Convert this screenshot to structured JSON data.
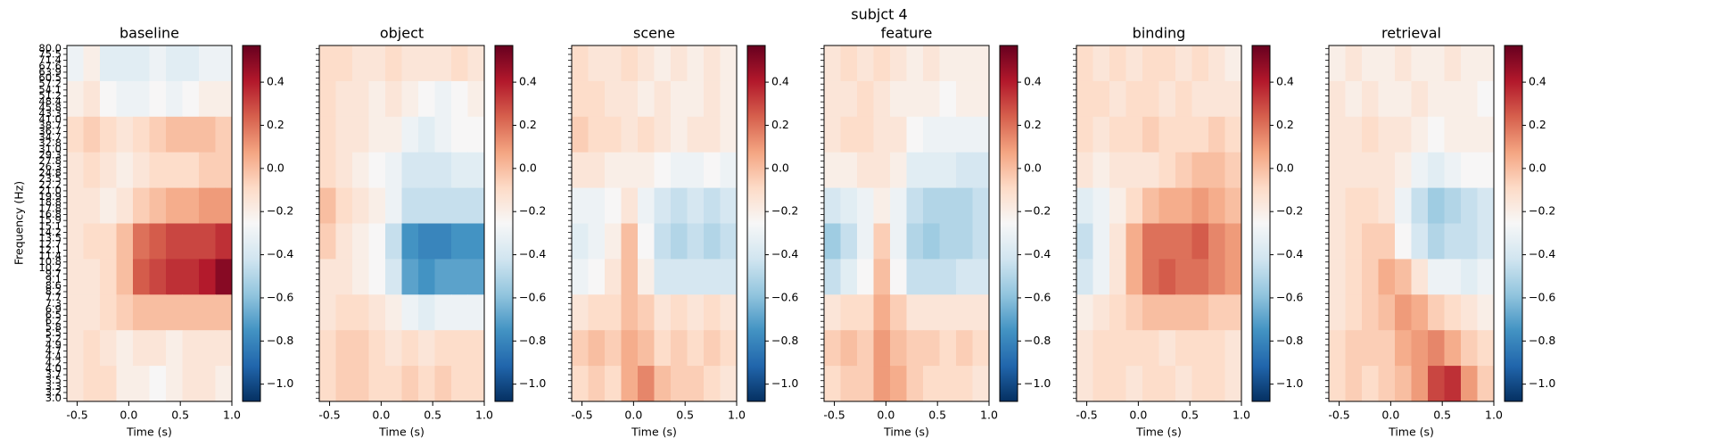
{
  "chart_data": {
    "type": "heatmap",
    "title": "subjct 4",
    "xlabel": "Time (s)",
    "ylabel": "Frequency (Hz)",
    "xlim": [
      -0.6,
      1.0
    ],
    "xticks": [
      -0.5,
      {
        "value": 0,
        "label": "0.0"
      },
      0.5,
      {
        "value": 1,
        "label": "1.0"
      }
    ],
    "frequencies": [
      "3.0",
      "3.2",
      "3.3",
      "3.5",
      "3.7",
      "4.0",
      "4.2",
      "4.4",
      "4.7",
      "4.9",
      "5.2",
      "5.5",
      "5.8",
      "6.2",
      "6.5",
      "6.9",
      "7.3",
      "7.7",
      "8.2",
      "8.6",
      "9.1",
      "9.7",
      "10.2",
      "10.8",
      "11.4",
      "12.1",
      "12.7",
      "13.5",
      "14.2",
      "15.1",
      "15.9",
      "16.8",
      "17.8",
      "18.8",
      "19.9",
      "21.0",
      "22.2",
      "23.5",
      "24.8",
      "26.3",
      "27.8",
      "29.3",
      "31.0",
      "32.8",
      "34.7",
      "36.7",
      "38.7",
      "41.0",
      "43.3",
      "45.8",
      "48.4",
      "51.2",
      "54.1",
      "57.2",
      "60.5",
      "63.9",
      "67.6",
      "71.4",
      "75.5",
      "80.0"
    ],
    "clim": [
      -1.08,
      0.57
    ],
    "cticks": [
      {
        "value": -1,
        "label": "−1.0"
      },
      {
        "value": -0.8,
        "label": "−0.8"
      },
      {
        "value": -0.6,
        "label": "−0.6"
      },
      {
        "value": -0.4,
        "label": "−0.4"
      },
      {
        "value": -0.2,
        "label": "−0.2"
      },
      {
        "value": 0,
        "label": "0.0"
      },
      0.2,
      0.4
    ],
    "colormap": [
      "#053061",
      "#2166ac",
      "#4393c3",
      "#92c5de",
      "#d1e5f0",
      "#f7f7f7",
      "#fddbc7",
      "#f4a582",
      "#d6604d",
      "#b2182b",
      "#67001f"
    ],
    "panels": [
      {
        "title": "baseline",
        "values": [
          [
            -0.3,
            -0.2,
            -0.35,
            -0.35,
            -0.35,
            -0.3,
            -0.35,
            -0.35,
            -0.3,
            -0.3
          ],
          [
            -0.2,
            -0.15,
            -0.25,
            -0.3,
            -0.3,
            -0.25,
            -0.3,
            -0.25,
            -0.2,
            -0.2
          ],
          [
            -0.1,
            -0.05,
            -0.1,
            -0.15,
            -0.1,
            -0.05,
            0.0,
            0.0,
            0.0,
            -0.05
          ],
          [
            -0.15,
            -0.1,
            -0.15,
            -0.2,
            -0.15,
            -0.1,
            -0.1,
            -0.1,
            -0.05,
            -0.05
          ],
          [
            -0.15,
            -0.15,
            -0.2,
            -0.15,
            -0.05,
            0.0,
            0.05,
            0.05,
            0.1,
            0.1
          ],
          [
            -0.15,
            -0.1,
            -0.1,
            0.0,
            0.2,
            0.25,
            0.3,
            0.3,
            0.3,
            0.35
          ],
          [
            -0.15,
            -0.15,
            -0.1,
            0.0,
            0.25,
            0.3,
            0.35,
            0.35,
            0.4,
            0.5
          ],
          [
            -0.15,
            -0.15,
            -0.1,
            -0.05,
            0.0,
            0.0,
            0.0,
            0.0,
            0.0,
            0.0
          ],
          [
            -0.15,
            -0.1,
            -0.15,
            -0.2,
            -0.15,
            -0.15,
            -0.2,
            -0.15,
            -0.15,
            -0.15
          ],
          [
            -0.15,
            -0.1,
            -0.1,
            -0.2,
            -0.2,
            -0.25,
            -0.2,
            -0.15,
            -0.15,
            -0.2
          ]
        ]
      },
      {
        "title": "object",
        "values": [
          [
            -0.1,
            -0.1,
            -0.15,
            -0.15,
            -0.1,
            -0.15,
            -0.15,
            -0.15,
            -0.1,
            -0.15
          ],
          [
            -0.1,
            -0.15,
            -0.15,
            -0.2,
            -0.15,
            -0.2,
            -0.25,
            -0.3,
            -0.25,
            -0.2
          ],
          [
            -0.1,
            -0.15,
            -0.15,
            -0.2,
            -0.2,
            -0.3,
            -0.35,
            -0.3,
            -0.25,
            -0.25
          ],
          [
            -0.1,
            -0.15,
            -0.2,
            -0.25,
            -0.3,
            -0.4,
            -0.4,
            -0.4,
            -0.35,
            -0.35
          ],
          [
            0.0,
            -0.1,
            -0.15,
            -0.2,
            -0.3,
            -0.45,
            -0.45,
            -0.45,
            -0.45,
            -0.45
          ],
          [
            -0.05,
            -0.15,
            -0.2,
            -0.25,
            -0.45,
            -0.75,
            -0.8,
            -0.8,
            -0.75,
            -0.75
          ],
          [
            -0.15,
            -0.15,
            -0.2,
            -0.25,
            -0.4,
            -0.7,
            -0.75,
            -0.7,
            -0.7,
            -0.7
          ],
          [
            -0.15,
            -0.1,
            -0.1,
            -0.15,
            -0.2,
            -0.3,
            -0.35,
            -0.3,
            -0.3,
            -0.3
          ],
          [
            -0.1,
            -0.05,
            -0.05,
            -0.1,
            -0.15,
            -0.1,
            -0.15,
            -0.1,
            -0.1,
            -0.1
          ],
          [
            -0.1,
            -0.05,
            -0.05,
            -0.1,
            -0.1,
            -0.05,
            -0.1,
            -0.05,
            -0.1,
            -0.1
          ]
        ]
      },
      {
        "title": "scene",
        "values": [
          [
            -0.1,
            -0.15,
            -0.15,
            -0.1,
            -0.15,
            -0.2,
            -0.15,
            -0.2,
            -0.15,
            -0.2
          ],
          [
            -0.1,
            -0.1,
            -0.15,
            -0.15,
            -0.2,
            -0.15,
            -0.2,
            -0.2,
            -0.15,
            -0.2
          ],
          [
            -0.05,
            -0.1,
            -0.1,
            -0.15,
            -0.1,
            -0.15,
            -0.2,
            -0.15,
            -0.15,
            -0.2
          ],
          [
            -0.15,
            -0.15,
            -0.2,
            -0.2,
            -0.2,
            -0.25,
            -0.3,
            -0.3,
            -0.25,
            -0.3
          ],
          [
            -0.3,
            -0.3,
            -0.25,
            -0.15,
            -0.3,
            -0.4,
            -0.45,
            -0.4,
            -0.45,
            -0.4
          ],
          [
            -0.35,
            -0.3,
            -0.2,
            0.0,
            -0.25,
            -0.45,
            -0.5,
            -0.45,
            -0.5,
            -0.45
          ],
          [
            -0.3,
            -0.25,
            -0.15,
            0.0,
            -0.2,
            -0.4,
            -0.4,
            -0.4,
            -0.4,
            -0.4
          ],
          [
            -0.15,
            -0.1,
            -0.1,
            0.0,
            -0.05,
            -0.15,
            -0.1,
            -0.15,
            -0.1,
            -0.15
          ],
          [
            -0.05,
            0.0,
            -0.05,
            0.05,
            0.0,
            -0.1,
            -0.05,
            -0.1,
            -0.05,
            -0.1
          ],
          [
            -0.1,
            -0.05,
            -0.1,
            0.05,
            0.15,
            0.0,
            -0.05,
            -0.05,
            -0.1,
            -0.15
          ]
        ]
      },
      {
        "title": "feature",
        "values": [
          [
            -0.15,
            -0.1,
            -0.15,
            -0.1,
            -0.15,
            -0.2,
            -0.15,
            -0.2,
            -0.2,
            -0.2
          ],
          [
            -0.15,
            -0.15,
            -0.1,
            -0.15,
            -0.2,
            -0.2,
            -0.2,
            -0.25,
            -0.2,
            -0.2
          ],
          [
            -0.15,
            -0.1,
            -0.1,
            -0.15,
            -0.15,
            -0.25,
            -0.3,
            -0.3,
            -0.3,
            -0.3
          ],
          [
            -0.2,
            -0.2,
            -0.15,
            -0.15,
            -0.2,
            -0.35,
            -0.35,
            -0.35,
            -0.4,
            -0.4
          ],
          [
            -0.4,
            -0.35,
            -0.3,
            -0.2,
            -0.3,
            -0.45,
            -0.5,
            -0.5,
            -0.5,
            -0.45
          ],
          [
            -0.55,
            -0.45,
            -0.3,
            -0.05,
            -0.3,
            -0.5,
            -0.55,
            -0.5,
            -0.5,
            -0.45
          ],
          [
            -0.45,
            -0.35,
            -0.25,
            0.0,
            -0.25,
            -0.45,
            -0.45,
            -0.45,
            -0.4,
            -0.4
          ],
          [
            -0.15,
            -0.1,
            -0.1,
            0.05,
            -0.05,
            -0.15,
            -0.15,
            -0.15,
            -0.15,
            -0.15
          ],
          [
            -0.05,
            0.0,
            -0.05,
            0.1,
            0.0,
            -0.05,
            -0.05,
            -0.1,
            -0.05,
            -0.1
          ],
          [
            -0.1,
            -0.05,
            -0.05,
            0.1,
            0.05,
            -0.05,
            -0.1,
            -0.1,
            -0.1,
            -0.15
          ]
        ]
      },
      {
        "title": "binding",
        "values": [
          [
            -0.1,
            -0.15,
            -0.1,
            -0.15,
            -0.1,
            -0.1,
            -0.15,
            -0.1,
            -0.15,
            -0.2
          ],
          [
            -0.1,
            -0.1,
            -0.15,
            -0.1,
            -0.1,
            -0.15,
            -0.1,
            -0.15,
            -0.15,
            -0.15
          ],
          [
            -0.1,
            -0.15,
            -0.1,
            -0.1,
            -0.05,
            -0.1,
            -0.1,
            -0.1,
            -0.05,
            -0.1
          ],
          [
            -0.15,
            -0.2,
            -0.15,
            -0.15,
            -0.15,
            -0.1,
            -0.05,
            0.0,
            0.0,
            -0.05
          ],
          [
            -0.35,
            -0.3,
            -0.2,
            -0.1,
            0.0,
            0.05,
            0.05,
            0.1,
            0.05,
            0.0
          ],
          [
            -0.45,
            -0.3,
            -0.15,
            0.05,
            0.2,
            0.2,
            0.2,
            0.25,
            0.15,
            0.1
          ],
          [
            -0.4,
            -0.3,
            -0.15,
            0.05,
            0.2,
            0.25,
            0.2,
            0.2,
            0.15,
            0.1
          ],
          [
            -0.2,
            -0.15,
            -0.1,
            -0.05,
            0.0,
            0.0,
            0.0,
            0.0,
            -0.05,
            -0.05
          ],
          [
            -0.15,
            -0.1,
            -0.1,
            -0.1,
            -0.1,
            -0.15,
            -0.1,
            -0.1,
            -0.1,
            -0.15
          ],
          [
            -0.15,
            -0.1,
            -0.1,
            -0.15,
            -0.1,
            -0.1,
            -0.15,
            -0.1,
            -0.1,
            -0.15
          ]
        ]
      },
      {
        "title": "retrieval",
        "values": [
          [
            -0.2,
            -0.15,
            -0.2,
            -0.2,
            -0.15,
            -0.2,
            -0.2,
            -0.15,
            -0.2,
            -0.2
          ],
          [
            -0.15,
            -0.2,
            -0.15,
            -0.2,
            -0.2,
            -0.15,
            -0.2,
            -0.2,
            -0.2,
            -0.25
          ],
          [
            -0.15,
            -0.15,
            -0.1,
            -0.15,
            -0.15,
            -0.2,
            -0.25,
            -0.2,
            -0.2,
            -0.2
          ],
          [
            -0.15,
            -0.15,
            -0.15,
            -0.15,
            -0.2,
            -0.3,
            -0.35,
            -0.3,
            -0.25,
            -0.25
          ],
          [
            -0.15,
            -0.1,
            -0.1,
            -0.15,
            -0.3,
            -0.45,
            -0.55,
            -0.5,
            -0.45,
            -0.4
          ],
          [
            -0.15,
            -0.1,
            -0.05,
            -0.05,
            -0.25,
            -0.4,
            -0.5,
            -0.45,
            -0.45,
            -0.4
          ],
          [
            -0.15,
            -0.1,
            -0.05,
            0.05,
            0.0,
            -0.15,
            -0.3,
            -0.3,
            -0.35,
            -0.3
          ],
          [
            -0.15,
            -0.1,
            -0.05,
            0.0,
            0.1,
            0.05,
            -0.05,
            -0.1,
            -0.15,
            -0.2
          ],
          [
            -0.1,
            -0.05,
            -0.05,
            -0.05,
            0.05,
            0.1,
            0.15,
            0.05,
            -0.05,
            -0.1
          ],
          [
            -0.1,
            -0.05,
            -0.1,
            -0.05,
            0.0,
            0.1,
            0.3,
            0.35,
            0.1,
            -0.05
          ]
        ]
      }
    ]
  }
}
